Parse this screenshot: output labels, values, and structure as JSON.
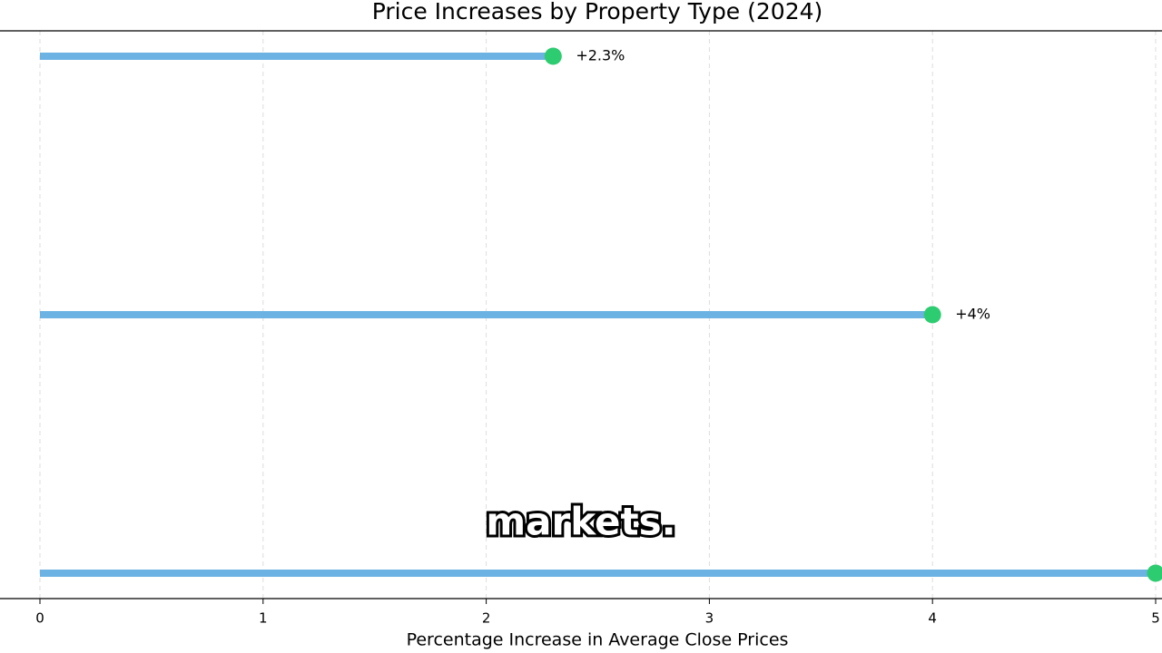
{
  "chart_data": {
    "type": "lollipop",
    "title": "Price Increases by Property Type (2024)",
    "x_label": "Percentage Increase in Average Close Prices",
    "categories": [
      null,
      null,
      null
    ],
    "values": [
      2.3,
      4,
      5
    ],
    "value_labels": [
      "+2.3%",
      "+4%",
      null
    ],
    "line_color": "#6cb2e2",
    "color": "#2ecc71",
    "xlim": [
      0,
      5
    ],
    "xticks": [
      0,
      1,
      2,
      3,
      4,
      5
    ],
    "grid": true
  },
  "caption": "markets."
}
